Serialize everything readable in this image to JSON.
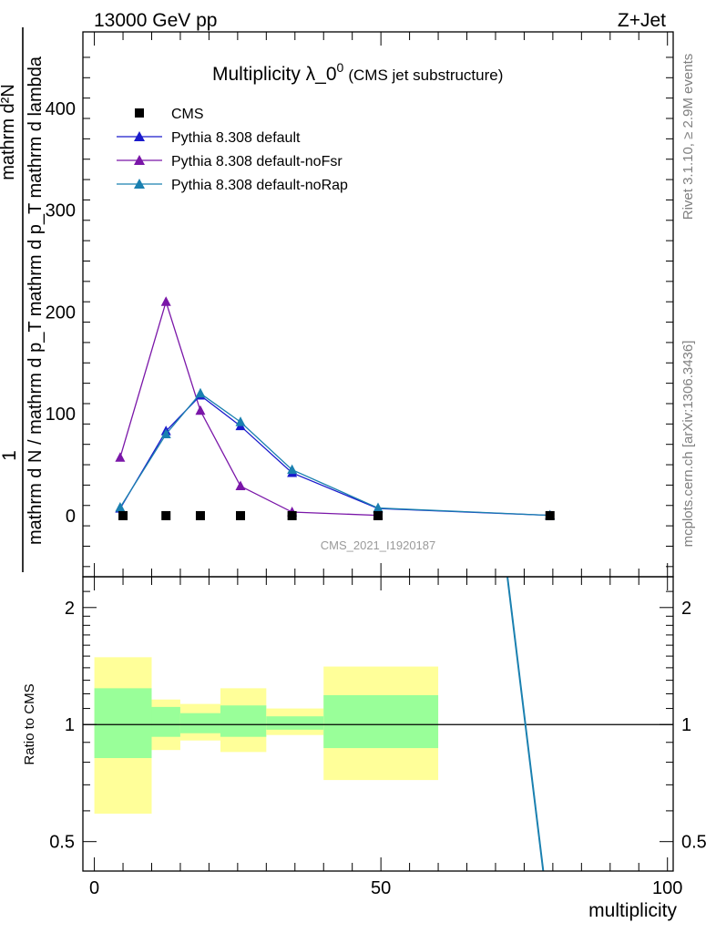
{
  "header": {
    "energy_label": "13000 GeV pp",
    "process_label": "Z+Jet"
  },
  "side_labels": {
    "rivet": "Rivet 3.1.10, ≥ 2.9M events",
    "source": "mcplots.cern.ch [arXiv:1306.3436]"
  },
  "watermark": "CMS_2021_I1920187",
  "colors": {
    "cms": "#000000",
    "default": "#1a1acc",
    "noFsr": "#7a16a8",
    "noRap": "#1a80b0",
    "band_inner": "#99ff99",
    "band_outer": "#ffff99"
  },
  "chart_data": [
    {
      "type": "line",
      "panel": "main",
      "title_main": "Multiplicity λ_0",
      "title_sup": "0",
      "title_sub": "(CMS jet substructure)",
      "ylabel_lines": [
        "1",
        "mathrm d N / mathrm d p_T mathrm d p_T mathrm d lambda",
        "mathrm d²N"
      ],
      "xlim": [
        -2,
        101
      ],
      "ylim": [
        -60,
        475
      ],
      "yticks": [
        0,
        100,
        200,
        300,
        400
      ],
      "legend_position": "top-left",
      "series": [
        {
          "name": "CMS",
          "marker": "square",
          "x": [
            5,
            12.5,
            18.5,
            25.5,
            34.5,
            49.5,
            79.5
          ],
          "y": [
            0,
            0,
            0,
            0,
            0,
            0,
            0
          ]
        },
        {
          "name": "Pythia 8.308 default",
          "marker": "triangle",
          "x": [
            4.5,
            12.5,
            18.5,
            25.5,
            34.5,
            49.5,
            79.5
          ],
          "y": [
            7,
            83,
            118,
            88,
            42,
            7,
            0.3
          ]
        },
        {
          "name": "Pythia 8.308 default-noFsr",
          "marker": "triangle",
          "x": [
            4.5,
            12.5,
            18.5,
            25.5,
            34.5,
            49.5
          ],
          "y": [
            57,
            210,
            103,
            29,
            3.5,
            0.3
          ]
        },
        {
          "name": "Pythia 8.308 default-noRap",
          "marker": "triangle",
          "x": [
            4.5,
            12.5,
            18.5,
            25.5,
            34.5,
            49.5,
            79.5
          ],
          "y": [
            8,
            80,
            120,
            92,
            45,
            7.5,
            0.3
          ]
        }
      ]
    },
    {
      "type": "line",
      "panel": "ratio",
      "ylabel": "Ratio to CMS",
      "xlabel": "multiplicity",
      "xlim": [
        -2,
        101
      ],
      "ylim": [
        0.42,
        2.4
      ],
      "log_y": true,
      "yticks": [
        0.5,
        1,
        2
      ],
      "xticks": [
        0,
        50,
        100
      ],
      "reference_line": 1,
      "bands": [
        {
          "x0": 0,
          "x1": 10,
          "inner": [
            0.82,
            1.24
          ],
          "outer": [
            0.59,
            1.49
          ]
        },
        {
          "x0": 10,
          "x1": 15,
          "inner": [
            0.93,
            1.11
          ],
          "outer": [
            0.86,
            1.16
          ]
        },
        {
          "x0": 15,
          "x1": 22,
          "inner": [
            0.95,
            1.07
          ],
          "outer": [
            0.91,
            1.13
          ]
        },
        {
          "x0": 22,
          "x1": 30,
          "inner": [
            0.93,
            1.12
          ],
          "outer": [
            0.85,
            1.24
          ]
        },
        {
          "x0": 30,
          "x1": 40,
          "inner": [
            0.97,
            1.05
          ],
          "outer": [
            0.94,
            1.1
          ]
        },
        {
          "x0": 40,
          "x1": 60,
          "inner": [
            0.87,
            1.19
          ],
          "outer": [
            0.72,
            1.41
          ]
        }
      ],
      "series": [
        {
          "name": "Pythia 8.308 default-noRap",
          "x": [
            72,
            78.5
          ],
          "y": [
            2.45,
            0.4
          ]
        }
      ]
    }
  ]
}
